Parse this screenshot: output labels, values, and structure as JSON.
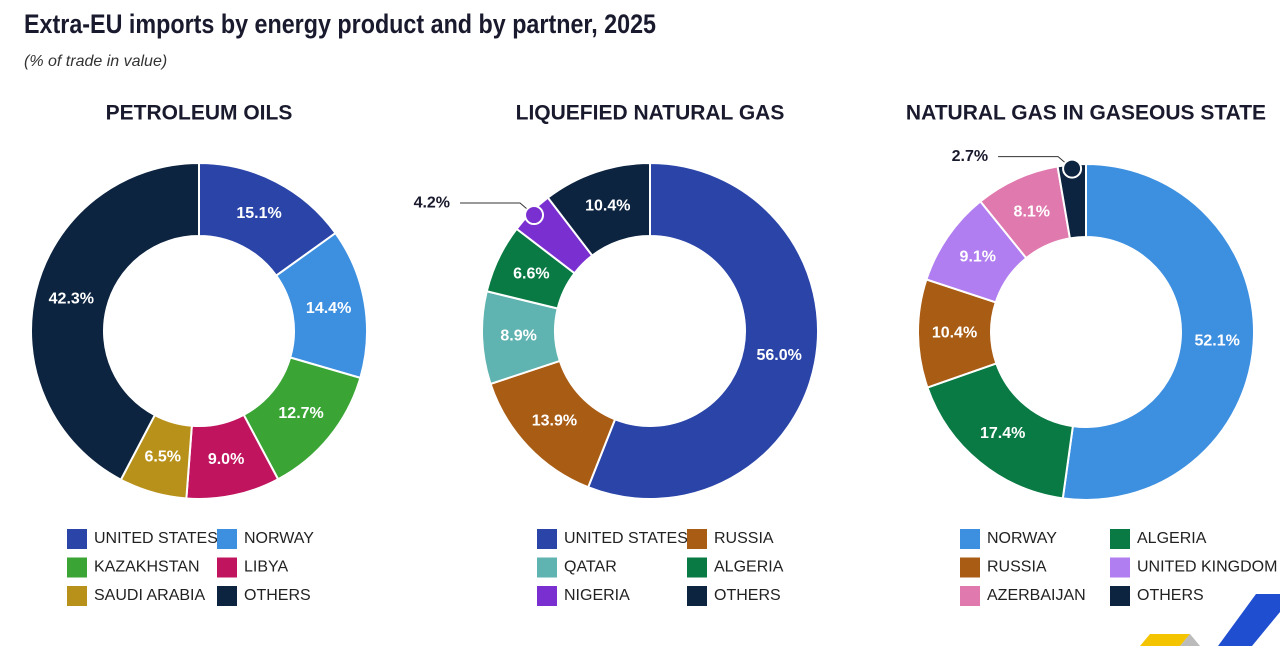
{
  "title": "Extra-EU imports by energy product and by partner, 2025",
  "subtitle": "(% of trade in value)",
  "chart_data": [
    {
      "type": "pie",
      "title": "PETROLEUM OILS",
      "categories": [
        "UNITED STATES",
        "NORWAY",
        "KAZAKHSTAN",
        "LIBYA",
        "SAUDI ARABIA",
        "OTHERS"
      ],
      "values": [
        15.1,
        14.4,
        12.7,
        9.0,
        6.5,
        42.3
      ],
      "value_labels": [
        "15.1%",
        "14.4%",
        "12.7%",
        "9.0%",
        "6.5%",
        "42.3%"
      ],
      "colors": [
        "#2a44a8",
        "#3d8fe0",
        "#3aa535",
        "#c0145e",
        "#b8911b",
        "#0d2440"
      ]
    },
    {
      "type": "pie",
      "title": "LIQUEFIED NATURAL GAS",
      "categories": [
        "UNITED STATES",
        "RUSSIA",
        "QATAR",
        "ALGERIA",
        "NIGERIA",
        "OTHERS"
      ],
      "values": [
        56.0,
        13.9,
        8.9,
        6.6,
        4.2,
        10.4
      ],
      "value_labels": [
        "56.0%",
        "13.9%",
        "8.9%",
        "6.6%",
        "4.2%",
        "10.4%"
      ],
      "colors": [
        "#2a44a8",
        "#a95c14",
        "#5fb3b0",
        "#0a7a45",
        "#7a2fd0",
        "#0d2440"
      ]
    },
    {
      "type": "pie",
      "title": "NATURAL GAS IN GASEOUS STATE",
      "categories": [
        "NORWAY",
        "ALGERIA",
        "RUSSIA",
        "UNITED KINGDOM",
        "AZERBAIJAN",
        "OTHERS"
      ],
      "values": [
        52.1,
        17.4,
        10.4,
        9.1,
        8.1,
        2.7
      ],
      "value_labels": [
        "52.1%",
        "17.4%",
        "10.4%",
        "9.1%",
        "8.1%",
        "2.7%"
      ],
      "colors": [
        "#3d8fe0",
        "#0a7a45",
        "#a95c14",
        "#b07ef0",
        "#e07aae",
        "#0d2440"
      ]
    }
  ]
}
